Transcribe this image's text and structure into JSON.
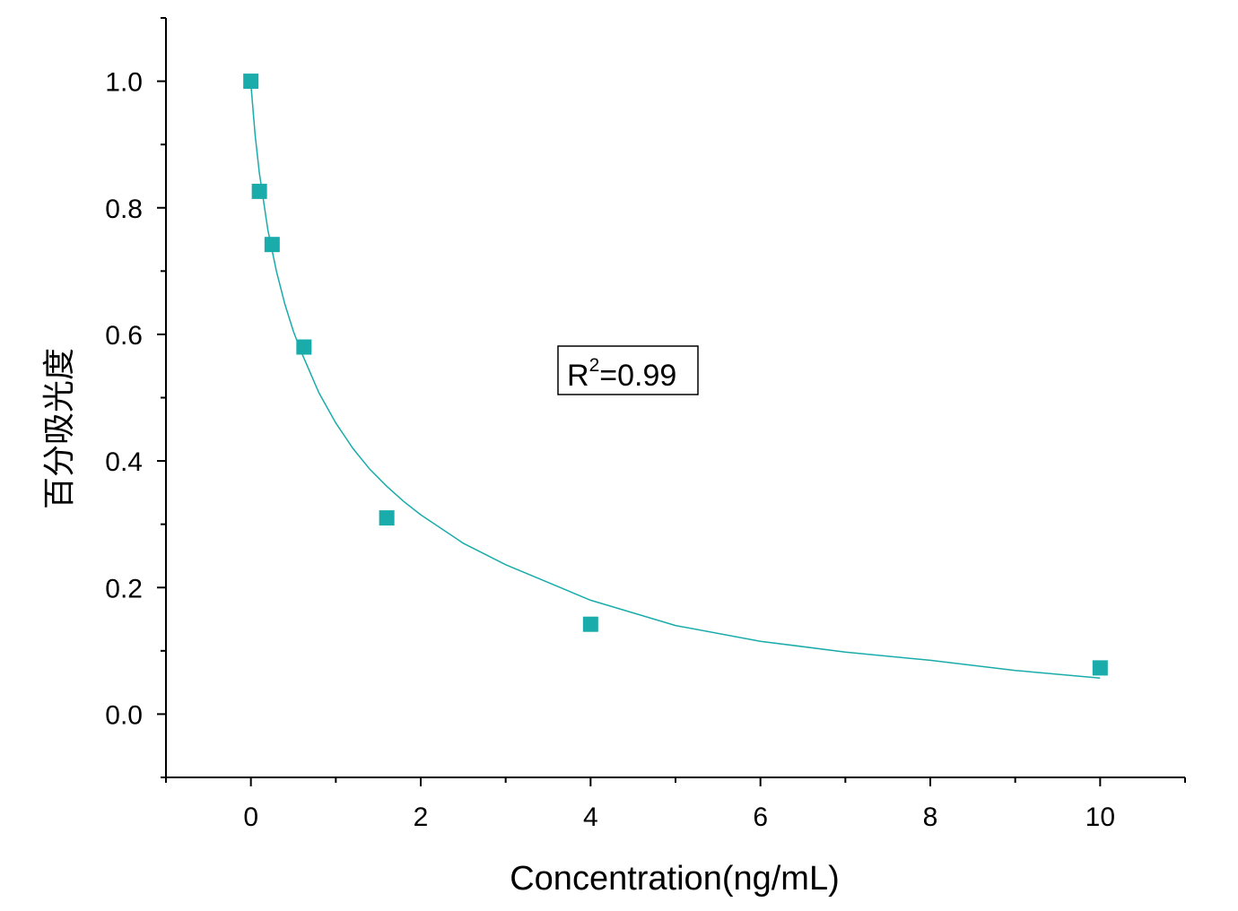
{
  "chart_data": {
    "type": "scatter",
    "xlabel": "Concentration(ng/mL)",
    "ylabel": "百分吸光度",
    "xlim": [
      -1,
      11
    ],
    "ylim": [
      -0.1,
      1.1
    ],
    "x_ticks": [
      0,
      2,
      4,
      6,
      8,
      10
    ],
    "y_ticks": [
      0.0,
      0.2,
      0.4,
      0.6,
      0.8,
      1.0
    ],
    "x_tick_labels": [
      "0",
      "2",
      "4",
      "6",
      "8",
      "10"
    ],
    "y_tick_labels": [
      "0.0",
      "0.2",
      "0.4",
      "0.6",
      "0.8",
      "1.0"
    ],
    "grid": false,
    "series": [
      {
        "marker": "square",
        "color": "#1AABAB",
        "x": [
          0,
          0.1,
          0.25,
          0.625,
          1.6,
          4,
          10
        ],
        "y": [
          1.0,
          0.826,
          0.742,
          0.58,
          0.31,
          0.142,
          0.073
        ]
      }
    ],
    "fit_curve": {
      "color": "#1AABAB",
      "x": [
        0,
        0.05,
        0.1,
        0.2,
        0.3,
        0.4,
        0.5,
        0.6,
        0.8,
        1.0,
        1.2,
        1.4,
        1.6,
        1.8,
        2.0,
        2.5,
        3.0,
        3.5,
        4.0,
        5.0,
        6.0,
        7.0,
        8.0,
        9.0,
        10.0
      ],
      "y": [
        0.995,
        0.915,
        0.855,
        0.765,
        0.7,
        0.648,
        0.605,
        0.57,
        0.508,
        0.46,
        0.42,
        0.387,
        0.36,
        0.336,
        0.315,
        0.27,
        0.236,
        0.208,
        0.18,
        0.14,
        0.115,
        0.098,
        0.085,
        0.069,
        0.057
      ]
    },
    "annotations": [
      {
        "text_main": "R",
        "text_sup": "2",
        "text_rest": "=0.99",
        "x": 4.5,
        "y": 0.54
      }
    ]
  }
}
